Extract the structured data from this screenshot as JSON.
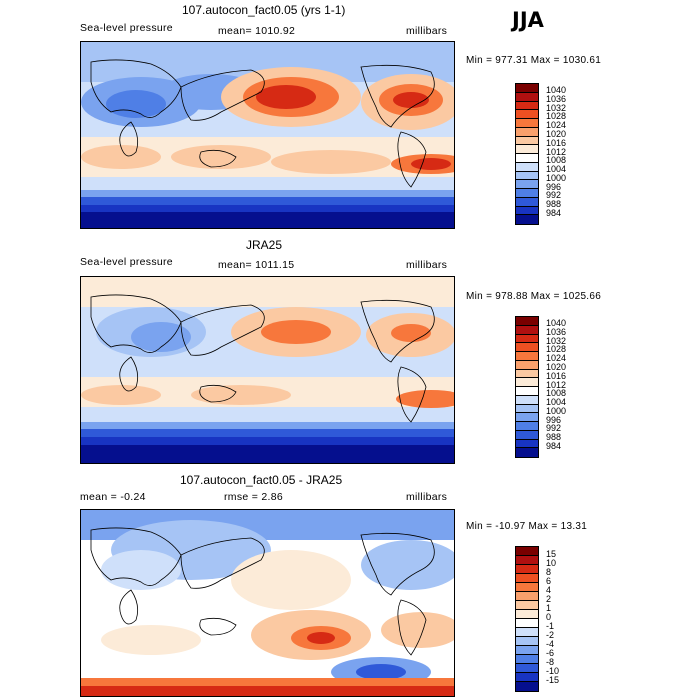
{
  "season": "JJA",
  "panels": [
    {
      "id": "model",
      "title": "107.autocon_fact0.05 (yrs 1-1)",
      "left_label": "Sea-level pressure",
      "center_label": "mean= 1010.92",
      "units": "millibars",
      "min_max": "Min = 977.31 Max = 1030.61",
      "levels": [
        "1040",
        "1036",
        "1032",
        "1028",
        "1024",
        "1020",
        "1016",
        "1012",
        "1008",
        "1004",
        "1000",
        "996",
        "992",
        "988",
        "984"
      ],
      "colors": [
        "#7a0000",
        "#b01010",
        "#d62a14",
        "#ee5022",
        "#f7773c",
        "#f9a06c",
        "#fbc9a2",
        "#fcebd8",
        "#ffffff",
        "#cfe0fa",
        "#a6c4f5",
        "#7aa3ef",
        "#4f7fe6",
        "#2f59d8",
        "#1834c2",
        "#050f8e"
      ]
    },
    {
      "id": "obs",
      "title": "JRA25",
      "left_label": "Sea-level pressure",
      "center_label": "mean= 1011.15",
      "units": "millibars",
      "min_max": "Min = 978.88 Max = 1025.66",
      "levels": [
        "1040",
        "1036",
        "1032",
        "1028",
        "1024",
        "1020",
        "1016",
        "1012",
        "1008",
        "1004",
        "1000",
        "996",
        "992",
        "988",
        "984"
      ],
      "colors": [
        "#7a0000",
        "#b01010",
        "#d62a14",
        "#ee5022",
        "#f7773c",
        "#f9a06c",
        "#fbc9a2",
        "#fcebd8",
        "#ffffff",
        "#cfe0fa",
        "#a6c4f5",
        "#7aa3ef",
        "#4f7fe6",
        "#2f59d8",
        "#1834c2",
        "#050f8e"
      ]
    },
    {
      "id": "diff",
      "title": "107.autocon_fact0.05 - JRA25",
      "left_label": "mean =   -0.24",
      "center_label": "rmse =    2.86",
      "units": "millibars",
      "min_max": "Min = -10.97 Max =   13.31",
      "levels": [
        "15",
        "10",
        "8",
        "6",
        "4",
        "2",
        "1",
        "0",
        "-1",
        "-2",
        "-4",
        "-6",
        "-8",
        "-10",
        "-15"
      ],
      "colors": [
        "#7a0000",
        "#b01010",
        "#d62a14",
        "#ee5022",
        "#f7773c",
        "#f9a06c",
        "#fbc9a2",
        "#fcebd8",
        "#ffffff",
        "#cfe0fa",
        "#a6c4f5",
        "#7aa3ef",
        "#4f7fe6",
        "#2f59d8",
        "#1834c2",
        "#050f8e"
      ]
    }
  ]
}
